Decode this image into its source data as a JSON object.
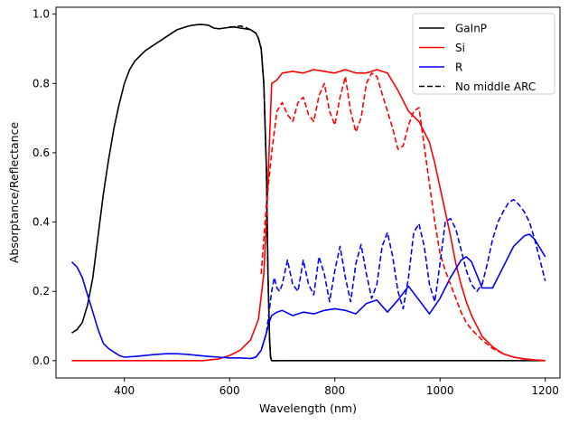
{
  "chart_data": {
    "type": "line",
    "title": "",
    "xlabel": "Wavelength (nm)",
    "ylabel": "Absorptance/Reflectance",
    "xlim": [
      270,
      1228
    ],
    "ylim": [
      -0.05,
      1.02
    ],
    "xticks": [
      400,
      600,
      800,
      1000,
      1200
    ],
    "yticks": [
      0.0,
      0.2,
      0.4,
      0.6,
      0.8,
      1.0
    ],
    "xtick_labels": [
      "400",
      "600",
      "800",
      "1000",
      "1200"
    ],
    "ytick_labels": [
      "0.0",
      "0.2",
      "0.4",
      "0.6",
      "0.8",
      "1.0"
    ],
    "grid": false,
    "legend_position": "top-right",
    "legend": [
      {
        "label": "GaInP",
        "color": "#000000",
        "style": "solid"
      },
      {
        "label": "Si",
        "color": "#ff0000",
        "style": "solid"
      },
      {
        "label": "R",
        "color": "#0000ff",
        "style": "solid"
      },
      {
        "label": "No middle ARC",
        "color": "#000000",
        "style": "dashed"
      }
    ],
    "series": [
      {
        "name": "GaInP",
        "color": "#000000",
        "dash": false,
        "x": [
          300,
          310,
          320,
          330,
          340,
          350,
          360,
          370,
          380,
          390,
          400,
          410,
          420,
          430,
          440,
          450,
          460,
          470,
          480,
          490,
          500,
          510,
          520,
          530,
          540,
          550,
          560,
          570,
          580,
          590,
          600,
          610,
          620,
          630,
          640,
          650,
          655,
          660,
          665,
          670,
          673,
          676,
          678,
          680,
          700,
          750,
          800,
          850,
          900,
          950,
          1000,
          1050,
          1100,
          1150,
          1200
        ],
        "y": [
          0.08,
          0.09,
          0.11,
          0.16,
          0.24,
          0.36,
          0.48,
          0.58,
          0.67,
          0.74,
          0.8,
          0.84,
          0.865,
          0.88,
          0.895,
          0.905,
          0.915,
          0.925,
          0.935,
          0.945,
          0.955,
          0.96,
          0.965,
          0.968,
          0.97,
          0.97,
          0.968,
          0.96,
          0.958,
          0.96,
          0.962,
          0.963,
          0.96,
          0.958,
          0.955,
          0.945,
          0.93,
          0.9,
          0.8,
          0.55,
          0.25,
          0.06,
          0.01,
          0.0,
          0.0,
          0.0,
          0.0,
          0.0,
          0.0,
          0.0,
          0.0,
          0.0,
          0.0,
          0.0,
          0.0
        ]
      },
      {
        "name": "GaInP",
        "color": "#000000",
        "dash": true,
        "x": [
          600,
          610,
          620,
          630,
          640,
          650,
          655,
          660,
          665,
          670,
          673,
          676,
          678,
          680,
          700
        ],
        "y": [
          0.963,
          0.964,
          0.966,
          0.962,
          0.955,
          0.945,
          0.93,
          0.9,
          0.8,
          0.55,
          0.25,
          0.06,
          0.01,
          0.0,
          0.0
        ]
      },
      {
        "name": "Si",
        "color": "#ff0000",
        "dash": false,
        "x": [
          300,
          350,
          400,
          450,
          500,
          550,
          580,
          600,
          620,
          640,
          655,
          665,
          670,
          675,
          680,
          690,
          700,
          720,
          740,
          760,
          780,
          800,
          820,
          840,
          860,
          880,
          900,
          920,
          940,
          960,
          980,
          990,
          1000,
          1010,
          1020,
          1030,
          1040,
          1050,
          1060,
          1080,
          1100,
          1120,
          1140,
          1160,
          1180,
          1200
        ],
        "y": [
          0.0,
          0.0,
          0.0,
          0.0,
          0.0,
          0.0,
          0.005,
          0.015,
          0.03,
          0.06,
          0.12,
          0.25,
          0.4,
          0.6,
          0.8,
          0.81,
          0.83,
          0.835,
          0.83,
          0.84,
          0.835,
          0.83,
          0.84,
          0.83,
          0.83,
          0.84,
          0.83,
          0.78,
          0.72,
          0.69,
          0.63,
          0.57,
          0.5,
          0.43,
          0.36,
          0.28,
          0.22,
          0.17,
          0.13,
          0.07,
          0.04,
          0.02,
          0.01,
          0.005,
          0.002,
          0.0
        ]
      },
      {
        "name": "Si",
        "color": "#ff0000",
        "dash": true,
        "x": [
          660,
          670,
          680,
          690,
          700,
          710,
          720,
          730,
          740,
          750,
          760,
          770,
          780,
          790,
          800,
          810,
          820,
          830,
          840,
          850,
          860,
          870,
          880,
          890,
          900,
          910,
          920,
          930,
          940,
          950,
          960,
          970,
          980,
          990,
          1000,
          1010,
          1020,
          1030,
          1040,
          1050,
          1060,
          1080,
          1100,
          1120,
          1140,
          1160,
          1180,
          1200
        ],
        "y": [
          0.25,
          0.45,
          0.6,
          0.72,
          0.745,
          0.71,
          0.69,
          0.745,
          0.76,
          0.71,
          0.69,
          0.765,
          0.8,
          0.72,
          0.68,
          0.76,
          0.82,
          0.72,
          0.66,
          0.7,
          0.8,
          0.83,
          0.82,
          0.77,
          0.72,
          0.67,
          0.61,
          0.62,
          0.68,
          0.72,
          0.73,
          0.62,
          0.51,
          0.4,
          0.31,
          0.26,
          0.22,
          0.18,
          0.14,
          0.11,
          0.09,
          0.06,
          0.035,
          0.02,
          0.01,
          0.005,
          0.002,
          0.0
        ]
      },
      {
        "name": "R",
        "color": "#0000ff",
        "dash": false,
        "x": [
          300,
          310,
          320,
          330,
          340,
          350,
          360,
          370,
          380,
          390,
          400,
          420,
          440,
          460,
          480,
          500,
          520,
          540,
          560,
          580,
          600,
          620,
          640,
          650,
          660,
          670,
          675,
          680,
          690,
          700,
          720,
          740,
          760,
          780,
          800,
          820,
          840,
          860,
          880,
          900,
          920,
          940,
          960,
          980,
          1000,
          1020,
          1040,
          1050,
          1060,
          1080,
          1100,
          1120,
          1140,
          1160,
          1170,
          1180,
          1200
        ],
        "y": [
          0.285,
          0.27,
          0.24,
          0.19,
          0.14,
          0.09,
          0.05,
          0.035,
          0.025,
          0.015,
          0.01,
          0.012,
          0.015,
          0.018,
          0.02,
          0.02,
          0.018,
          0.015,
          0.012,
          0.01,
          0.008,
          0.008,
          0.006,
          0.01,
          0.03,
          0.08,
          0.11,
          0.13,
          0.14,
          0.145,
          0.13,
          0.14,
          0.135,
          0.145,
          0.15,
          0.145,
          0.135,
          0.165,
          0.175,
          0.14,
          0.175,
          0.215,
          0.175,
          0.135,
          0.18,
          0.24,
          0.29,
          0.3,
          0.285,
          0.21,
          0.21,
          0.27,
          0.33,
          0.36,
          0.365,
          0.35,
          0.3
        ]
      },
      {
        "name": "R",
        "color": "#0000ff",
        "dash": true,
        "x": [
          640,
          650,
          660,
          670,
          680,
          685,
          690,
          695,
          700,
          710,
          720,
          730,
          740,
          750,
          760,
          770,
          780,
          790,
          800,
          810,
          820,
          830,
          840,
          850,
          860,
          870,
          880,
          890,
          900,
          910,
          920,
          930,
          940,
          950,
          960,
          970,
          980,
          990,
          1000,
          1010,
          1020,
          1030,
          1040,
          1050,
          1060,
          1070,
          1080,
          1090,
          1100,
          1110,
          1120,
          1130,
          1140,
          1150,
          1160,
          1170,
          1180,
          1190,
          1200
        ],
        "y": [
          0.006,
          0.01,
          0.03,
          0.08,
          0.2,
          0.24,
          0.21,
          0.2,
          0.22,
          0.29,
          0.22,
          0.2,
          0.29,
          0.22,
          0.19,
          0.3,
          0.25,
          0.17,
          0.26,
          0.33,
          0.24,
          0.17,
          0.28,
          0.335,
          0.25,
          0.18,
          0.22,
          0.33,
          0.37,
          0.3,
          0.2,
          0.15,
          0.24,
          0.37,
          0.395,
          0.33,
          0.22,
          0.17,
          0.28,
          0.4,
          0.41,
          0.38,
          0.32,
          0.26,
          0.22,
          0.2,
          0.22,
          0.28,
          0.35,
          0.4,
          0.43,
          0.455,
          0.465,
          0.45,
          0.43,
          0.4,
          0.35,
          0.29,
          0.23
        ]
      }
    ]
  }
}
